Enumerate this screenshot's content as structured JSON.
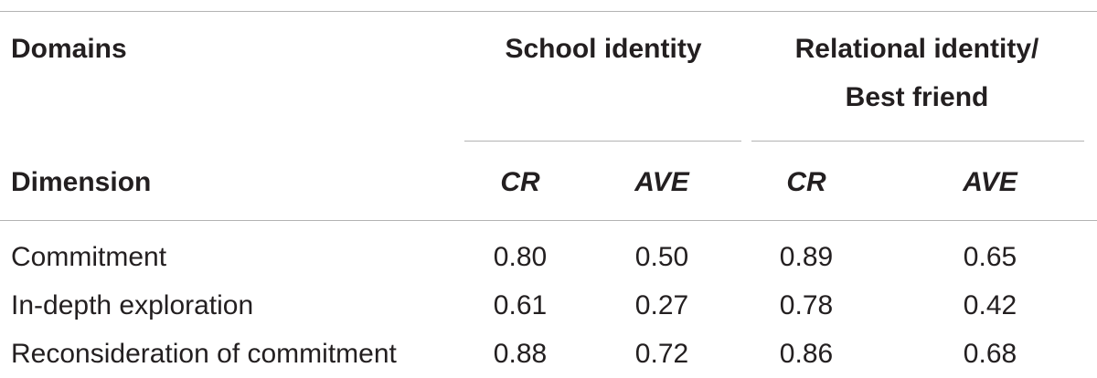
{
  "table": {
    "domains_label": "Domains",
    "dimension_label": "Dimension",
    "groups": [
      {
        "title_line1": "School identity",
        "title_line2": ""
      },
      {
        "title_line1": "Relational identity/",
        "title_line2": "Best friend"
      }
    ],
    "subheaders": [
      "CR",
      "AVE",
      "CR",
      "AVE"
    ],
    "rows": [
      {
        "label": "Commitment",
        "values": [
          "0.80",
          "0.50",
          "0.89",
          "0.65"
        ]
      },
      {
        "label": "In-depth exploration",
        "values": [
          "0.61",
          "0.27",
          "0.78",
          "0.42"
        ]
      },
      {
        "label": "Reconsideration of commitment",
        "values": [
          "0.88",
          "0.72",
          "0.86",
          "0.68"
        ]
      }
    ]
  }
}
